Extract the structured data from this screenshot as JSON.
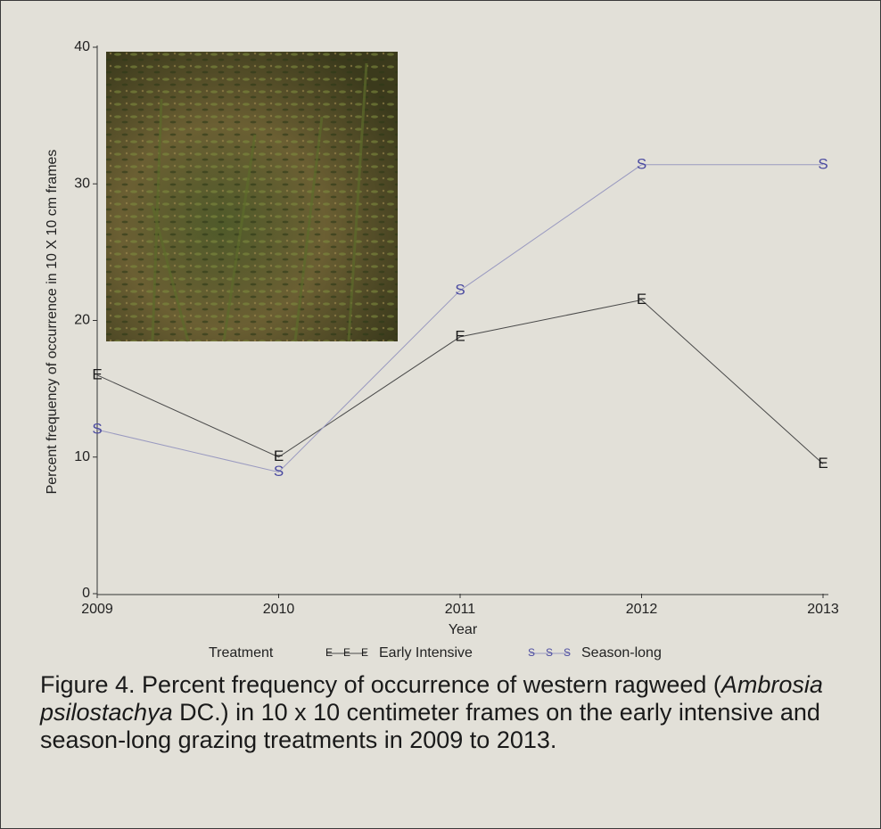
{
  "chart_data": {
    "type": "line",
    "x_label": "Year",
    "y_label": "Percent frequency of occurrence in 10 X 10 cm frames",
    "legend_title": "Treatment",
    "caption": [
      "Figure 4. Percent frequency of occurrence of western ragweed (",
      "Ambrosia psilostachya",
      " DC.) in 10 x 10 centimeter frames on the early intensive and season-long grazing treatments in 2009 to 2013."
    ],
    "x": [
      2009,
      2010,
      2011,
      2012,
      2013
    ],
    "xlim": [
      2009,
      2013
    ],
    "xticks": [
      2009,
      2010,
      2011,
      2012,
      2013
    ],
    "ylim": [
      0,
      40
    ],
    "yticks": [
      0,
      10,
      20,
      30,
      40
    ],
    "series": [
      {
        "name": "Early Intensive",
        "marker": "E",
        "color": "#4a4a4a",
        "marker_color": "#1a1a1a",
        "values": [
          16,
          10,
          18.8,
          21.5,
          9.5
        ]
      },
      {
        "name": "Season-long",
        "marker": "S",
        "color": "#9a9ac0",
        "marker_color": "#4a4aa0",
        "values": [
          12,
          8.9,
          22.2,
          31.4,
          31.4
        ]
      }
    ]
  }
}
